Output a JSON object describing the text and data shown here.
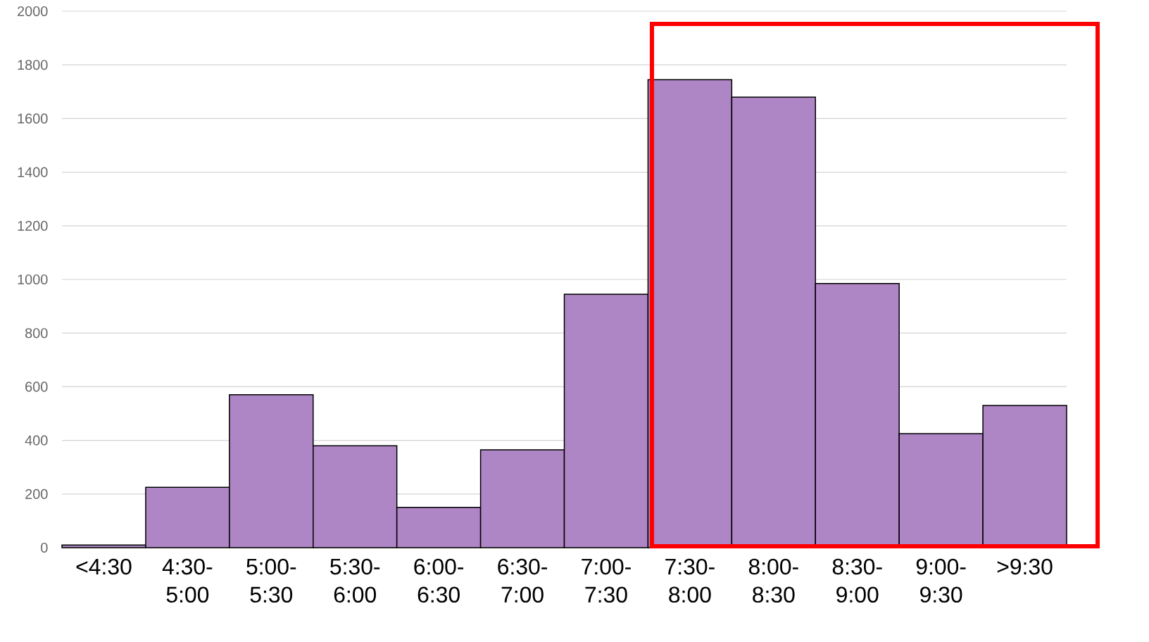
{
  "chart_data": {
    "type": "bar",
    "categories": [
      "<4:30",
      "4:30-5:00",
      "5:00-5:30",
      "5:30-6:00",
      "6:00-6:30",
      "6:30-7:00",
      "7:00-7:30",
      "7:30-8:00",
      "8:00-8:30",
      "8:30-9:00",
      "9:00-9:30",
      ">9:30"
    ],
    "values": [
      10,
      225,
      570,
      380,
      150,
      365,
      945,
      1745,
      1680,
      985,
      425,
      530
    ],
    "color": "#ae86c5",
    "ylim": [
      0,
      2000
    ],
    "yticks": [
      0,
      200,
      400,
      600,
      800,
      1000,
      1200,
      1400,
      1600,
      1800,
      2000
    ],
    "grid": "y"
  }
}
